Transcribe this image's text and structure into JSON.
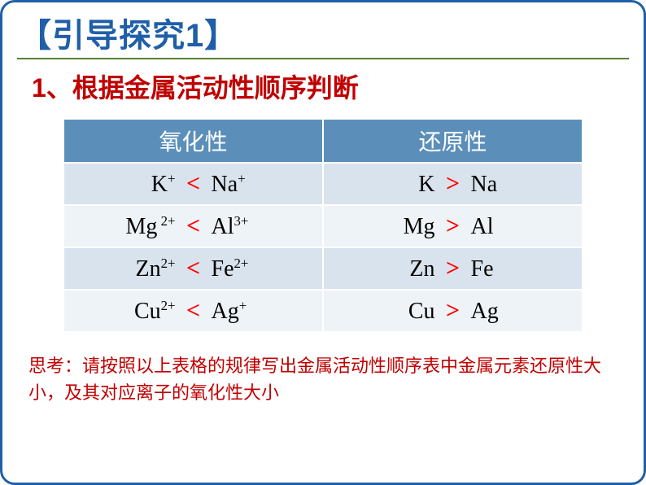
{
  "title": "【引导探究1】",
  "subtitle": "1、根据金属活动性顺序判断",
  "table": {
    "headers": {
      "col1": "氧化性",
      "col2": "还原性"
    },
    "rows": [
      {
        "ox_l": "K",
        "ox_l_sup": "+",
        "ox_cmp": "<",
        "ox_r": "Na",
        "ox_r_sup": "+",
        "re_l": "K",
        "re_cmp": ">",
        "re_r": "Na"
      },
      {
        "ox_l": "Mg",
        "ox_l_sup": " 2+",
        "ox_cmp": "<",
        "ox_r": "Al",
        "ox_r_sup": "3+",
        "re_l": "Mg",
        "re_cmp": ">",
        "re_r": "Al"
      },
      {
        "ox_l": "Zn",
        "ox_l_sup": "2+",
        "ox_cmp": "<",
        "ox_r": "Fe",
        "ox_r_sup": "2+",
        "re_l": "Zn",
        "re_cmp": ">",
        "re_r": "Fe"
      },
      {
        "ox_l": "Cu",
        "ox_l_sup": "2+",
        "ox_cmp": "<",
        "ox_r": "Ag",
        "ox_r_sup": "+",
        "re_l": "Cu",
        "re_cmp": ">",
        "re_r": "Ag"
      }
    ],
    "row_bg": [
      "#d9e3ed",
      "#eef3f7",
      "#d9e3ed",
      "#eef3f7"
    ],
    "header_bg": "#5b8fb9",
    "header_fg": "#ffffff",
    "cmp_color": "#ff0000"
  },
  "note": "思考：请按照以上表格的规律写出金属活动性顺序表中金属元素还原性大小，及其对应离子的氧化性大小",
  "colors": {
    "border": "#1f5fa8",
    "title": "#1f5fa8",
    "rule": "#548235",
    "accent": "#c00000"
  }
}
